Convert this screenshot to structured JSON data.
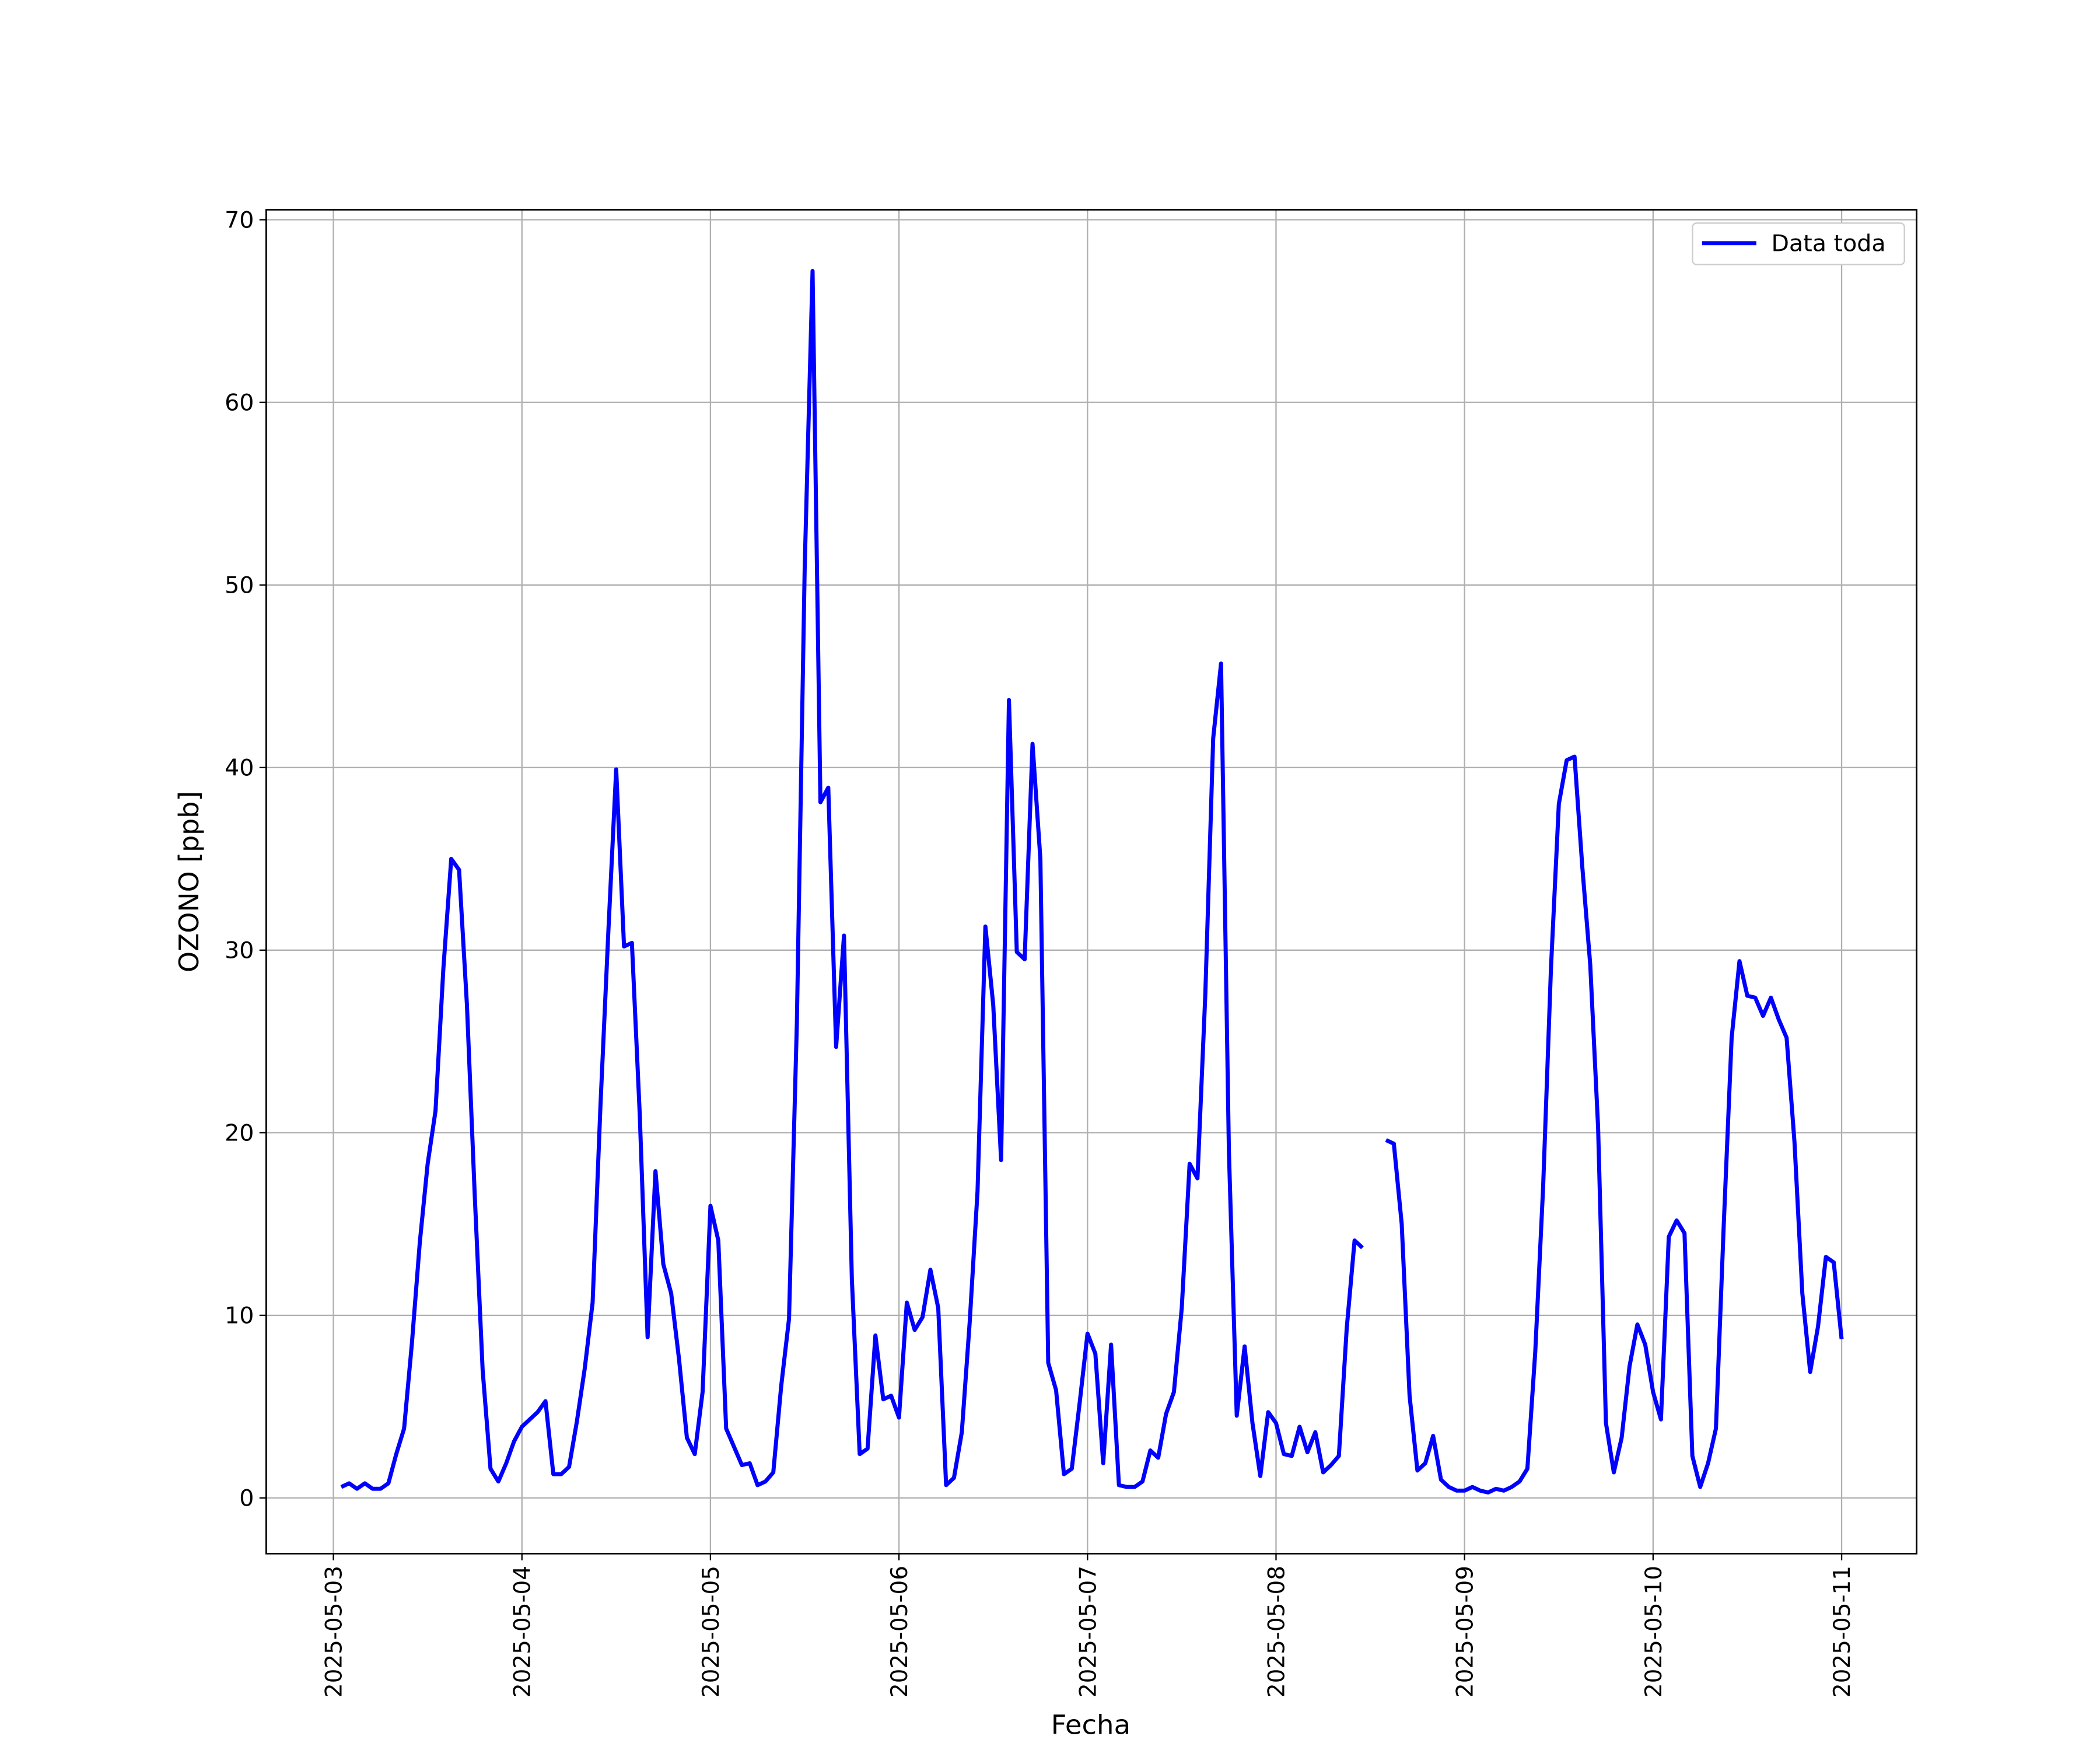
{
  "chart_data": {
    "type": "line",
    "xlabel": "Fecha",
    "ylabel": "OZONO [ppb]",
    "x": [
      "2025-05-03 01:00",
      "2025-05-03 02:00",
      "2025-05-03 03:00",
      "2025-05-03 04:00",
      "2025-05-03 05:00",
      "2025-05-03 06:00",
      "2025-05-03 07:00",
      "2025-05-03 08:00",
      "2025-05-03 09:00",
      "2025-05-03 10:00",
      "2025-05-03 11:00",
      "2025-05-03 12:00",
      "2025-05-03 13:00",
      "2025-05-03 14:00",
      "2025-05-03 15:00",
      "2025-05-03 16:00",
      "2025-05-03 17:00",
      "2025-05-03 18:00",
      "2025-05-03 19:00",
      "2025-05-03 20:00",
      "2025-05-03 21:00",
      "2025-05-03 22:00",
      "2025-05-03 23:00",
      "2025-05-04 00:00",
      "2025-05-04 01:00",
      "2025-05-04 02:00",
      "2025-05-04 03:00",
      "2025-05-04 04:00",
      "2025-05-04 05:00",
      "2025-05-04 06:00",
      "2025-05-04 07:00",
      "2025-05-04 08:00",
      "2025-05-04 09:00",
      "2025-05-04 10:00",
      "2025-05-04 11:00",
      "2025-05-04 12:00",
      "2025-05-04 13:00",
      "2025-05-04 14:00",
      "2025-05-04 15:00",
      "2025-05-04 16:00",
      "2025-05-04 17:00",
      "2025-05-04 18:00",
      "2025-05-04 19:00",
      "2025-05-04 20:00",
      "2025-05-04 21:00",
      "2025-05-04 22:00",
      "2025-05-04 23:00",
      "2025-05-05 00:00",
      "2025-05-05 01:00",
      "2025-05-05 02:00",
      "2025-05-05 03:00",
      "2025-05-05 04:00",
      "2025-05-05 05:00",
      "2025-05-05 06:00",
      "2025-05-05 07:00",
      "2025-05-05 08:00",
      "2025-05-05 09:00",
      "2025-05-05 10:00",
      "2025-05-05 11:00",
      "2025-05-05 12:00",
      "2025-05-05 13:00",
      "2025-05-05 14:00",
      "2025-05-05 15:00",
      "2025-05-05 16:00",
      "2025-05-05 17:00",
      "2025-05-05 18:00",
      "2025-05-05 19:00",
      "2025-05-05 20:00",
      "2025-05-05 21:00",
      "2025-05-05 22:00",
      "2025-05-05 23:00",
      "2025-05-06 00:00",
      "2025-05-06 01:00",
      "2025-05-06 02:00",
      "2025-05-06 03:00",
      "2025-05-06 04:00",
      "2025-05-06 05:00",
      "2025-05-06 06:00",
      "2025-05-06 07:00",
      "2025-05-06 08:00",
      "2025-05-06 09:00",
      "2025-05-06 10:00",
      "2025-05-06 11:00",
      "2025-05-06 12:00",
      "2025-05-06 13:00",
      "2025-05-06 14:00",
      "2025-05-06 15:00",
      "2025-05-06 16:00",
      "2025-05-06 17:00",
      "2025-05-06 18:00",
      "2025-05-06 19:00",
      "2025-05-06 20:00",
      "2025-05-06 21:00",
      "2025-05-06 22:00",
      "2025-05-06 23:00",
      "2025-05-07 00:00",
      "2025-05-07 01:00",
      "2025-05-07 02:00",
      "2025-05-07 03:00",
      "2025-05-07 04:00",
      "2025-05-07 05:00",
      "2025-05-07 06:00",
      "2025-05-07 07:00",
      "2025-05-07 08:00",
      "2025-05-07 09:00",
      "2025-05-07 10:00",
      "2025-05-07 11:00",
      "2025-05-07 12:00",
      "2025-05-07 13:00",
      "2025-05-07 14:00",
      "2025-05-07 15:00",
      "2025-05-07 16:00",
      "2025-05-07 17:00",
      "2025-05-07 18:00",
      "2025-05-07 19:00",
      "2025-05-07 20:00",
      "2025-05-07 21:00",
      "2025-05-07 22:00",
      "2025-05-07 23:00",
      "2025-05-08 00:00",
      "2025-05-08 01:00",
      "2025-05-08 02:00",
      "2025-05-08 03:00",
      "2025-05-08 04:00",
      "2025-05-08 05:00",
      "2025-05-08 06:00",
      "2025-05-08 07:00",
      "2025-05-08 08:00",
      "2025-05-08 09:00",
      "2025-05-08 10:00",
      "2025-05-08 11:00",
      "2025-05-08 12:00",
      "2025-05-08 13:00",
      "2025-05-08 14:00",
      "2025-05-08 15:00",
      "2025-05-08 16:00",
      "2025-05-08 17:00",
      "2025-05-08 18:00",
      "2025-05-08 19:00",
      "2025-05-08 20:00",
      "2025-05-08 21:00",
      "2025-05-08 22:00",
      "2025-05-08 23:00",
      "2025-05-09 00:00",
      "2025-05-09 01:00",
      "2025-05-09 02:00",
      "2025-05-09 03:00",
      "2025-05-09 04:00",
      "2025-05-09 05:00",
      "2025-05-09 06:00",
      "2025-05-09 07:00",
      "2025-05-09 08:00",
      "2025-05-09 09:00",
      "2025-05-09 10:00",
      "2025-05-09 11:00",
      "2025-05-09 12:00",
      "2025-05-09 13:00",
      "2025-05-09 14:00",
      "2025-05-09 15:00",
      "2025-05-09 16:00",
      "2025-05-09 17:00",
      "2025-05-09 18:00",
      "2025-05-09 19:00",
      "2025-05-09 20:00",
      "2025-05-09 21:00",
      "2025-05-09 22:00",
      "2025-05-09 23:00",
      "2025-05-10 00:00",
      "2025-05-10 01:00",
      "2025-05-10 02:00",
      "2025-05-10 03:00",
      "2025-05-10 04:00",
      "2025-05-10 05:00",
      "2025-05-10 06:00",
      "2025-05-10 07:00",
      "2025-05-10 08:00",
      "2025-05-10 09:00",
      "2025-05-10 10:00",
      "2025-05-10 11:00",
      "2025-05-10 12:00",
      "2025-05-10 13:00",
      "2025-05-10 14:00",
      "2025-05-10 15:00",
      "2025-05-10 16:00",
      "2025-05-10 17:00",
      "2025-05-10 18:00",
      "2025-05-10 19:00",
      "2025-05-10 20:00",
      "2025-05-10 21:00",
      "2025-05-10 22:00",
      "2025-05-10 23:00",
      "2025-05-11 00:00"
    ],
    "series": [
      {
        "name": "Data toda",
        "color": "#0000ff",
        "values": [
          0.6,
          0.8,
          0.5,
          0.8,
          0.5,
          0.5,
          0.8,
          2.4,
          3.8,
          8.5,
          14,
          18.3,
          21.2,
          29,
          35,
          34.4,
          27,
          16.5,
          7,
          1.6,
          0.9,
          1.9,
          3.1,
          3.9,
          4.3,
          4.7,
          5.3,
          1.3,
          1.3,
          1.7,
          4.2,
          7.1,
          10.7,
          21.5,
          31,
          39.9,
          30.2,
          30.4,
          21,
          8.8,
          17.9,
          12.8,
          11.2,
          7.6,
          3.3,
          2.4,
          5.8,
          16,
          14.1,
          3.8,
          2.8,
          1.8,
          1.9,
          0.7,
          0.9,
          1.4,
          6.1,
          9.8,
          26,
          51,
          67.2,
          38.1,
          38.9,
          24.7,
          30.8,
          12,
          2.4,
          2.7,
          8.9,
          5.4,
          5.6,
          4.4,
          10.7,
          9.2,
          9.9,
          12.5,
          10.4,
          0.7,
          1.1,
          3.6,
          9.6,
          16.8,
          31.3,
          27,
          18.5,
          43.7,
          29.9,
          29.5,
          41.3,
          35,
          7.4,
          5.9,
          1.3,
          1.6,
          5.2,
          9,
          7.9,
          1.9,
          8.4,
          0.7,
          0.6,
          0.6,
          0.9,
          2.6,
          2.2,
          4.6,
          5.8,
          10.4,
          18.3,
          17.5,
          27.6,
          41.6,
          45.7,
          19,
          4.5,
          8.3,
          4.1,
          1.2,
          4.7,
          4.1,
          2.4,
          2.3,
          3.9,
          2.5,
          3.6,
          1.4,
          1.8,
          2.3,
          9.3,
          14.1,
          13.7,
          null,
          null,
          19.6,
          19.4,
          15,
          5.6,
          1.5,
          1.9,
          3.4,
          1.0,
          0.6,
          0.4,
          0.4,
          0.6,
          0.4,
          0.3,
          0.5,
          0.4,
          0.6,
          0.9,
          1.6,
          8,
          17,
          29,
          38,
          40.4,
          40.6,
          34.5,
          29.2,
          20.3,
          4.1,
          1.4,
          3.3,
          7.2,
          9.5,
          8.4,
          5.8,
          4.3,
          14.3,
          15.2,
          14.5,
          2.3,
          0.6,
          1.9,
          3.8,
          15,
          25.2,
          29.4,
          27.5,
          27.4,
          26.4,
          27.4,
          26.2,
          25.2,
          19.5,
          11.2,
          6.9,
          9.4,
          13.2,
          12.9,
          8.7
        ]
      }
    ],
    "xticks": [
      "2025-05-03",
      "2025-05-04",
      "2025-05-05",
      "2025-05-06",
      "2025-05-07",
      "2025-05-08",
      "2025-05-09",
      "2025-05-10",
      "2025-05-11"
    ],
    "ylim": [
      -3.05,
      70.55
    ],
    "yticks": [
      0,
      10,
      20,
      30,
      40,
      50,
      60,
      70
    ],
    "grid": true,
    "legend": "upper right"
  }
}
